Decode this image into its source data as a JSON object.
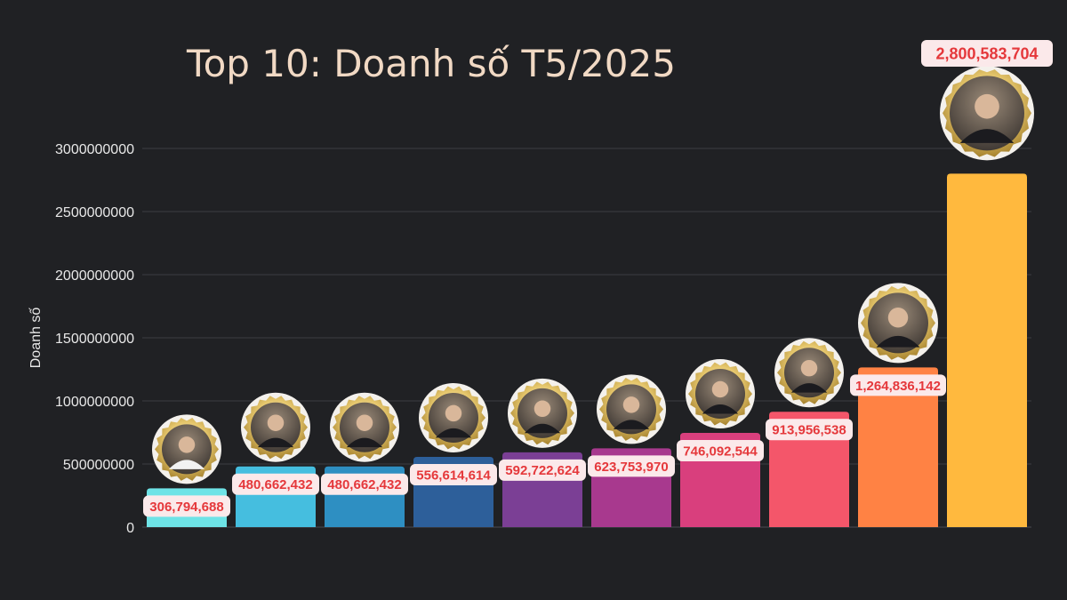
{
  "chart_data": {
    "type": "bar",
    "title": "Top 10: Doanh số T5/2025",
    "ylabel": "Doanh số",
    "xlabel": "",
    "ylim": [
      0,
      3000000000
    ],
    "yticks": [
      "0",
      "500000000",
      "1000000000",
      "1500000000",
      "2000000000",
      "2500000000",
      "3000000000"
    ],
    "grid": true,
    "values": [
      306794688,
      480662432,
      480662432,
      556614614,
      592722624,
      623753970,
      746092544,
      913956538,
      1264836142,
      2800583704
    ],
    "value_labels": [
      "306,794,688",
      "480,662,432",
      "480,662,432",
      "556,614,614",
      "592,722,624",
      "623,753,970",
      "746,092,544",
      "913,956,538",
      "1,264,836,142",
      "2,800,583,704"
    ],
    "colors": [
      "#6ee3e6",
      "#45bedf",
      "#2e8fc2",
      "#2d5f9a",
      "#7b3f95",
      "#a8398e",
      "#d93f7d",
      "#f4566a",
      "#ff8244",
      "#ffb93e"
    ],
    "accent_colors": {
      "label_bg": "#fbe9ea",
      "label_text": "#e5383b",
      "avatar_ring": "#d4b25a",
      "background": "#202124"
    },
    "avatars": "circular portrait photo above each bar with a gold scalloped badge ring"
  }
}
